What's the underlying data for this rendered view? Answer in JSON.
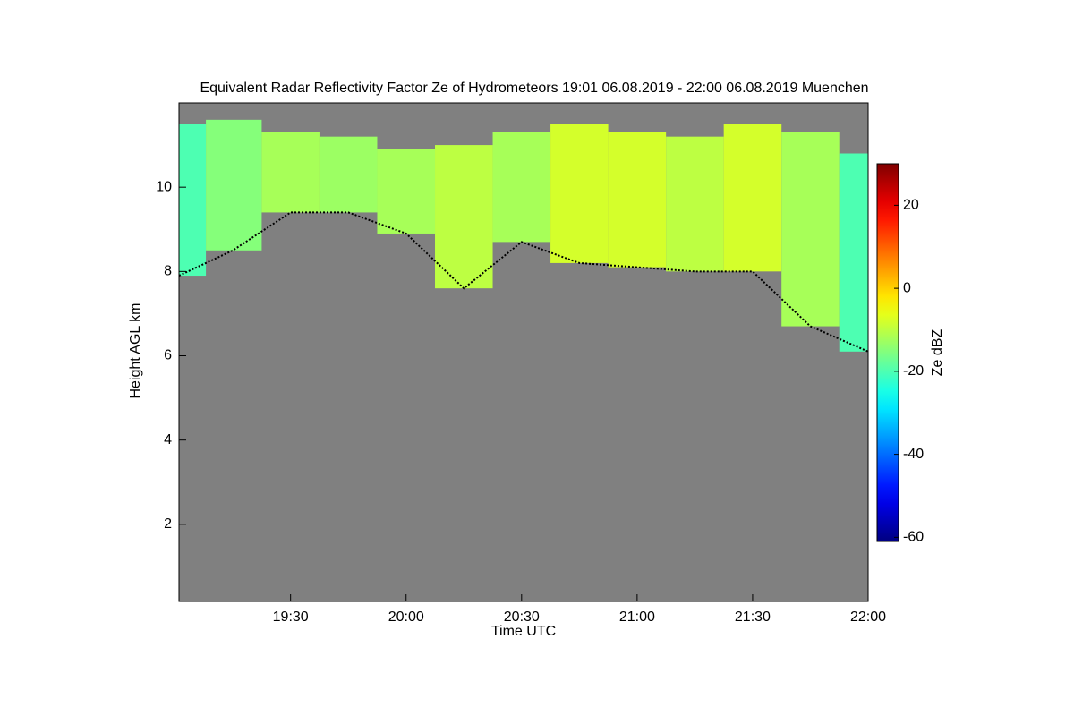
{
  "chart_data": {
    "type": "heatmap",
    "title": "Equivalent Radar Reflectivity Factor Ze of Hydrometeors   19:01 06.08.2019 - 22:00 06.08.2019 Muenchen",
    "x_label": "Time UTC",
    "y_label": "Height AGL km",
    "colorbar_label": "Ze dBZ",
    "x": [
      19.017,
      19.25,
      19.5,
      19.75,
      20.0,
      20.25,
      20.5,
      20.75,
      21.0,
      21.25,
      21.5,
      21.75,
      22.0
    ],
    "top": [
      11.5,
      11.6,
      11.3,
      11.2,
      10.9,
      11.0,
      11.3,
      11.5,
      11.3,
      11.2,
      11.5,
      11.3,
      10.8
    ],
    "base": [
      7.9,
      8.5,
      9.4,
      9.4,
      8.9,
      7.6,
      8.7,
      8.2,
      8.1,
      8.0,
      8.0,
      6.7,
      6.1
    ],
    "values": [
      -20,
      -15,
      -12,
      -13,
      -12,
      -10,
      -12,
      -8,
      -8,
      -10,
      -8,
      -12,
      -20
    ],
    "xlim": [
      19.017,
      22.0
    ],
    "xticks": [
      {
        "value": 19.5,
        "label": "19:30"
      },
      {
        "value": 20.0,
        "label": "20:00"
      },
      {
        "value": 20.5,
        "label": "20:30"
      },
      {
        "value": 21.0,
        "label": "21:00"
      },
      {
        "value": 21.5,
        "label": "21:30"
      },
      {
        "value": 22.0,
        "label": "22:00"
      }
    ],
    "ylim": [
      0.17,
      12.0
    ],
    "yticks": [
      2,
      4,
      6,
      8,
      10
    ],
    "clim": [
      -61,
      30
    ],
    "cticks": [
      -60,
      -40,
      -20,
      0,
      20
    ],
    "background": "#808080",
    "line_color": "#000000"
  }
}
